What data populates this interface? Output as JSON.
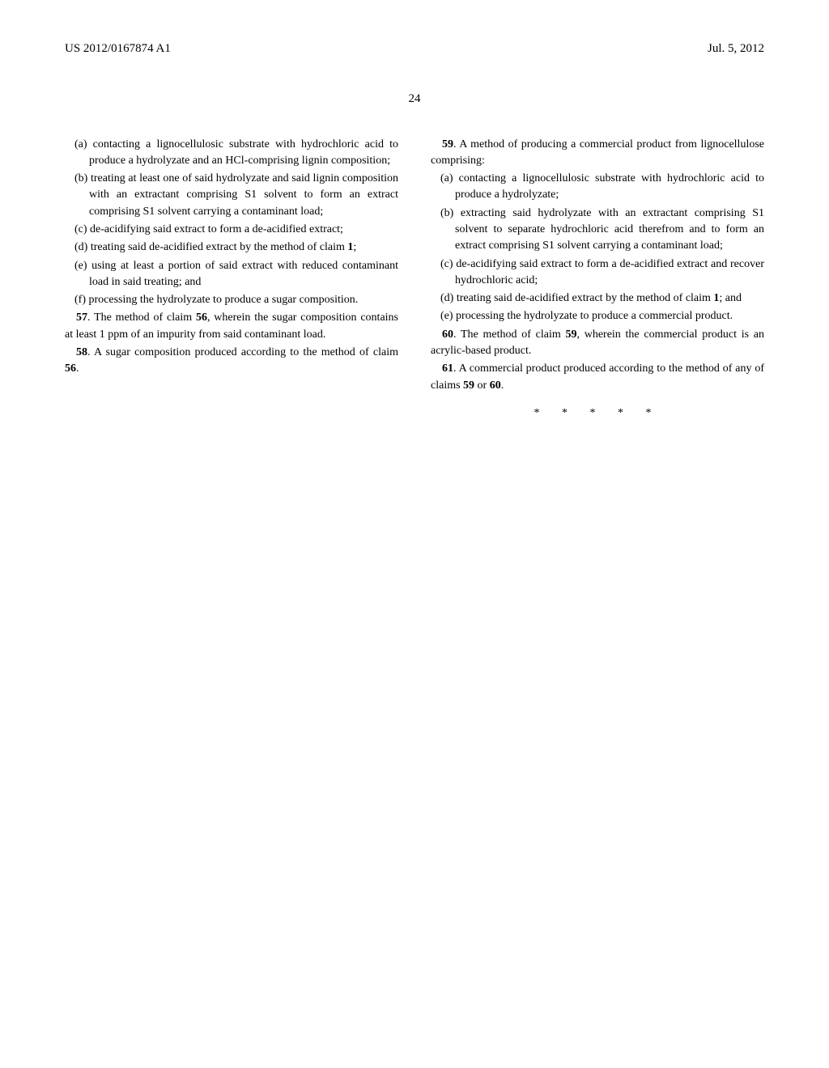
{
  "header": {
    "pub_number": "US 2012/0167874 A1",
    "pub_date": "Jul. 5, 2012"
  },
  "page_number": "24",
  "left_column": {
    "items": [
      "(a) contacting a lignocellulosic substrate with hydrochloric acid to produce a hydrolyzate and an HCl-comprising lignin composition;",
      "(b) treating at least one of said hydrolyzate and said lignin composition with an extractant comprising S1 solvent to form an extract comprising S1 solvent carrying a contaminant load;",
      "(c) de-acidifying said extract to form a de-acidified extract;"
    ],
    "item_d_prefix": "(d) treating said de-acidified extract by the method of claim ",
    "item_d_bold": "1",
    "item_d_suffix": ";",
    "items2": [
      "(e) using at least a portion of said extract with reduced contaminant load in said treating; and",
      "(f) processing the hydrolyzate to produce a sugar composition."
    ],
    "claim57_prefix": "57",
    "claim57_text1": ". The method of claim ",
    "claim57_bold": "56",
    "claim57_text2": ", wherein the sugar composition contains at least 1 ppm of an impurity from said contaminant load.",
    "claim58_prefix": "58",
    "claim58_text1": ". A sugar composition produced according to the method of claim ",
    "claim58_bold": "56",
    "claim58_suffix": "."
  },
  "right_column": {
    "claim59_prefix": "59",
    "claim59_text": ". A method of producing a commercial product from lignocellulose comprising:",
    "items": [
      "(a) contacting a lignocellulosic substrate with hydrochloric acid to produce a hydrolyzate;",
      "(b) extracting said hydrolyzate with an extractant comprising S1 solvent to separate hydrochloric acid therefrom and to form an extract comprising S1 solvent carrying a contaminant load;",
      "(c) de-acidifying said extract to form a de-acidified extract and recover hydrochloric acid;"
    ],
    "item_d_prefix": "(d) treating said de-acidified extract by the method of claim ",
    "item_d_bold": "1",
    "item_d_suffix": "; and",
    "item_e": "(e) processing the hydrolyzate to produce a commercial product.",
    "claim60_prefix": "60",
    "claim60_text1": ". The method of claim ",
    "claim60_bold": "59",
    "claim60_text2": ", wherein the commercial product is an acrylic-based product.",
    "claim61_prefix": "61",
    "claim61_text1": ". A commercial product produced according to the method of any of claims ",
    "claim61_bold1": "59",
    "claim61_or": " or ",
    "claim61_bold2": "60",
    "claim61_suffix": ".",
    "asterisks": "* * * * *"
  }
}
